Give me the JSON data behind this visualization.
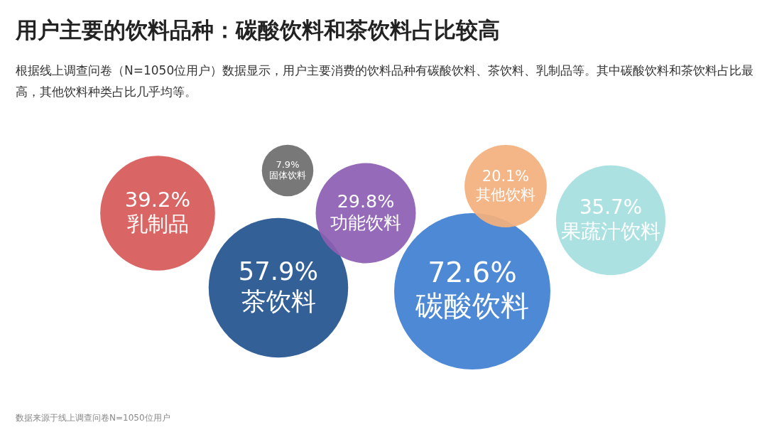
{
  "chart_data": {
    "type": "other",
    "title": "用户主要的饮料品种：碳酸饮料和茶饮料占比较高",
    "subtitle": "根据线上调查问卷（N=1050位用户）数据显示，用户主要消费的饮料品种有碳酸饮料、茶饮料、乳制品等。其中碳酸饮料和茶饮料占比最高，其他饮料种类占比几乎均等。",
    "categories": [
      "乳制品",
      "固体饮料",
      "茶饮料",
      "功能饮料",
      "碳酸饮料",
      "其他饮料",
      "果蔬汁饮料"
    ],
    "values": [
      39.2,
      7.9,
      57.9,
      29.8,
      72.6,
      20.1,
      35.7
    ],
    "value_labels": [
      "39.2%",
      "7.9%",
      "57.9%",
      "29.8%",
      "72.6%",
      "20.1%",
      "35.7%"
    ],
    "colors": [
      "#d65a58",
      "#6e6e6e",
      "#23558f",
      "#8d5fb3",
      "#3f80d2",
      "#f3b07e",
      "#a6dfe0"
    ],
    "annotations": [
      "数据来源于线上调查问卷N=1050位用户"
    ]
  }
}
